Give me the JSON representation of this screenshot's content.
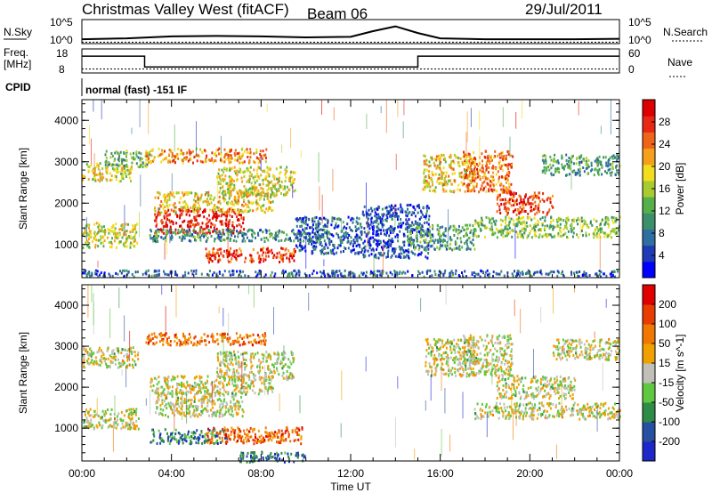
{
  "header": {
    "station": "Christmas Valley West (fitACF)",
    "beam": "Beam 06",
    "date": "29/Jul/2011"
  },
  "noise_panel": {
    "left_label": "N.Sky",
    "left_ticks": [
      "10^5",
      "10^0"
    ],
    "right_label": "N.Search",
    "right_ticks": [
      "10^5",
      "10^0"
    ]
  },
  "freq_panel": {
    "left_label_1": "Freq.",
    "left_label_2": "[MHz]",
    "left_ticks": [
      "18",
      "8"
    ],
    "right_label": "Nave",
    "right_ticks": [
      "60",
      "0"
    ]
  },
  "cpid_panel": {
    "label": "CPID",
    "program": "normal (fast) -151 IF"
  },
  "chart_data": [
    {
      "type": "line",
      "name": "noise",
      "series": [
        {
          "name": "N.Sky",
          "x_hours": [
            0,
            2,
            4,
            6,
            8,
            10,
            12,
            13,
            14,
            15,
            16,
            18,
            20,
            22,
            24
          ],
          "values_log10": [
            0.9,
            1.1,
            1.5,
            1.6,
            1.5,
            1.3,
            1.4,
            2.6,
            3.6,
            2.2,
            1.1,
            0.9,
            0.9,
            0.9,
            1.0
          ]
        },
        {
          "name": "N.Search",
          "x_hours": [
            0,
            6,
            12,
            18,
            24
          ],
          "values_log10": [
            0.3,
            0.3,
            0.3,
            0.3,
            0.3
          ]
        }
      ],
      "ylim_log10": [
        0,
        5
      ]
    },
    {
      "type": "line",
      "name": "frequency",
      "series": [
        {
          "name": "Freq.",
          "x_hours": [
            0,
            2.8,
            2.8,
            15,
            15,
            24
          ],
          "values": [
            15,
            15,
            10.5,
            10.5,
            15,
            15
          ]
        },
        {
          "name": "Nave",
          "x_hours": [
            0,
            24
          ],
          "values": [
            10,
            10
          ]
        }
      ],
      "ylim_freq": [
        8,
        18
      ],
      "ylim_nave": [
        0,
        60
      ]
    },
    {
      "type": "heatmap",
      "title": "Power [dB]",
      "xlabel": "",
      "ylabel": "Slant Range [km]",
      "xlim_hours": [
        0,
        24
      ],
      "ylim_km": [
        200,
        4500
      ],
      "y_ticks": [
        "1000",
        "2000",
        "3000",
        "4000"
      ],
      "colorbar_ticks": [
        "28",
        "24",
        "20",
        "16",
        "12",
        "8",
        "4"
      ],
      "colorbar_colors": [
        "#0000ff",
        "#1e3ab4",
        "#2e6ea0",
        "#3c8f6a",
        "#56b04a",
        "#a8cc30",
        "#f4dc1e",
        "#f4a01a",
        "#ee6418",
        "#e62814",
        "#dc0000"
      ],
      "scatter_regions": [
        {
          "t0": 0.0,
          "t1": 2.2,
          "r0": 2550,
          "r1": 3000,
          "level": 0.55
        },
        {
          "t0": 1.0,
          "t1": 3.0,
          "r0": 2900,
          "r1": 3300,
          "level": 0.4
        },
        {
          "t0": 0.0,
          "t1": 2.5,
          "r0": 950,
          "r1": 1550,
          "level": 0.55
        },
        {
          "t0": 3.2,
          "t1": 7.2,
          "r0": 1300,
          "r1": 1900,
          "level": 0.92
        },
        {
          "t0": 3.2,
          "t1": 8.5,
          "r0": 1800,
          "r1": 2300,
          "level": 0.6
        },
        {
          "t0": 6.0,
          "t1": 9.5,
          "r0": 2200,
          "r1": 2900,
          "level": 0.55
        },
        {
          "t0": 2.8,
          "t1": 8.2,
          "r0": 3000,
          "r1": 3350,
          "level": 0.7
        },
        {
          "t0": 3.0,
          "t1": 11.0,
          "r0": 1100,
          "r1": 1400,
          "level": 0.3
        },
        {
          "t0": 5.5,
          "t1": 9.5,
          "r0": 600,
          "r1": 950,
          "level": 0.85
        },
        {
          "t0": 9.5,
          "t1": 12.5,
          "r0": 800,
          "r1": 1700,
          "level": 0.2
        },
        {
          "t0": 12.5,
          "t1": 15.5,
          "r0": 700,
          "r1": 2000,
          "level": 0.15
        },
        {
          "t0": 14.5,
          "t1": 17.5,
          "r0": 900,
          "r1": 1500,
          "level": 0.35
        },
        {
          "t0": 15.2,
          "t1": 17.5,
          "r0": 2300,
          "r1": 3200,
          "level": 0.6
        },
        {
          "t0": 17.0,
          "t1": 19.2,
          "r0": 2300,
          "r1": 3300,
          "level": 0.75
        },
        {
          "t0": 18.5,
          "t1": 21.0,
          "r0": 1750,
          "r1": 2300,
          "level": 0.85
        },
        {
          "t0": 17.5,
          "t1": 24.0,
          "r0": 1200,
          "r1": 1700,
          "level": 0.45
        },
        {
          "t0": 20.5,
          "t1": 24.0,
          "r0": 2700,
          "r1": 3200,
          "level": 0.35
        },
        {
          "t0": 0.0,
          "t1": 24.0,
          "r0": 250,
          "r1": 400,
          "level": 0.2
        }
      ]
    },
    {
      "type": "heatmap",
      "title": "Velocity [m s^-1]",
      "xlabel": "Time UT",
      "ylabel": "Slant Range [km]",
      "x_ticks": [
        "00:00",
        "04:00",
        "08:00",
        "12:00",
        "16:00",
        "20:00",
        "00:00"
      ],
      "xlim_hours": [
        0,
        24
      ],
      "ylim_km": [
        200,
        4500
      ],
      "y_ticks": [
        "1000",
        "2000",
        "3000",
        "4000"
      ],
      "colorbar_ticks": [
        "200",
        "100",
        "50",
        "15",
        "-15",
        "-50",
        "-100",
        "-200"
      ],
      "colorbar_colors": [
        "#1e28c8",
        "#2850a0",
        "#2e8c46",
        "#60c840",
        "#c0c0b8",
        "#f0a000",
        "#f07800",
        "#e83c00",
        "#e00000"
      ],
      "scatter_regions": [
        {
          "t0": 0.0,
          "t1": 2.5,
          "r0": 2500,
          "r1": 3000,
          "level": 0.5
        },
        {
          "t0": 0.0,
          "t1": 2.5,
          "r0": 1000,
          "r1": 1500,
          "level": 0.5
        },
        {
          "t0": 3.2,
          "t1": 7.2,
          "r0": 1300,
          "r1": 1900,
          "level": 0.5
        },
        {
          "t0": 3.0,
          "t1": 8.5,
          "r0": 1850,
          "r1": 2300,
          "level": 0.5
        },
        {
          "t0": 6.0,
          "t1": 9.5,
          "r0": 2200,
          "r1": 2900,
          "level": 0.5
        },
        {
          "t0": 2.8,
          "t1": 8.2,
          "r0": 3050,
          "r1": 3350,
          "level": 0.75
        },
        {
          "t0": 3.0,
          "t1": 6.5,
          "r0": 650,
          "r1": 1000,
          "level": 0.25
        },
        {
          "t0": 5.5,
          "t1": 9.8,
          "r0": 650,
          "r1": 1050,
          "level": 0.75
        },
        {
          "t0": 15.3,
          "t1": 17.5,
          "r0": 2300,
          "r1": 3200,
          "level": 0.5
        },
        {
          "t0": 17.0,
          "t1": 19.2,
          "r0": 2300,
          "r1": 3300,
          "level": 0.5
        },
        {
          "t0": 18.5,
          "t1": 22.0,
          "r0": 1750,
          "r1": 2300,
          "level": 0.5
        },
        {
          "t0": 17.5,
          "t1": 24.0,
          "r0": 1250,
          "r1": 1650,
          "level": 0.5
        },
        {
          "t0": 21.0,
          "t1": 24.0,
          "r0": 2700,
          "r1": 3200,
          "level": 0.5
        },
        {
          "t0": 7.0,
          "t1": 10.0,
          "r0": 200,
          "r1": 450,
          "level": 0.2
        }
      ]
    }
  ],
  "colors": {
    "axis": "#000000",
    "background": "#ffffff"
  }
}
